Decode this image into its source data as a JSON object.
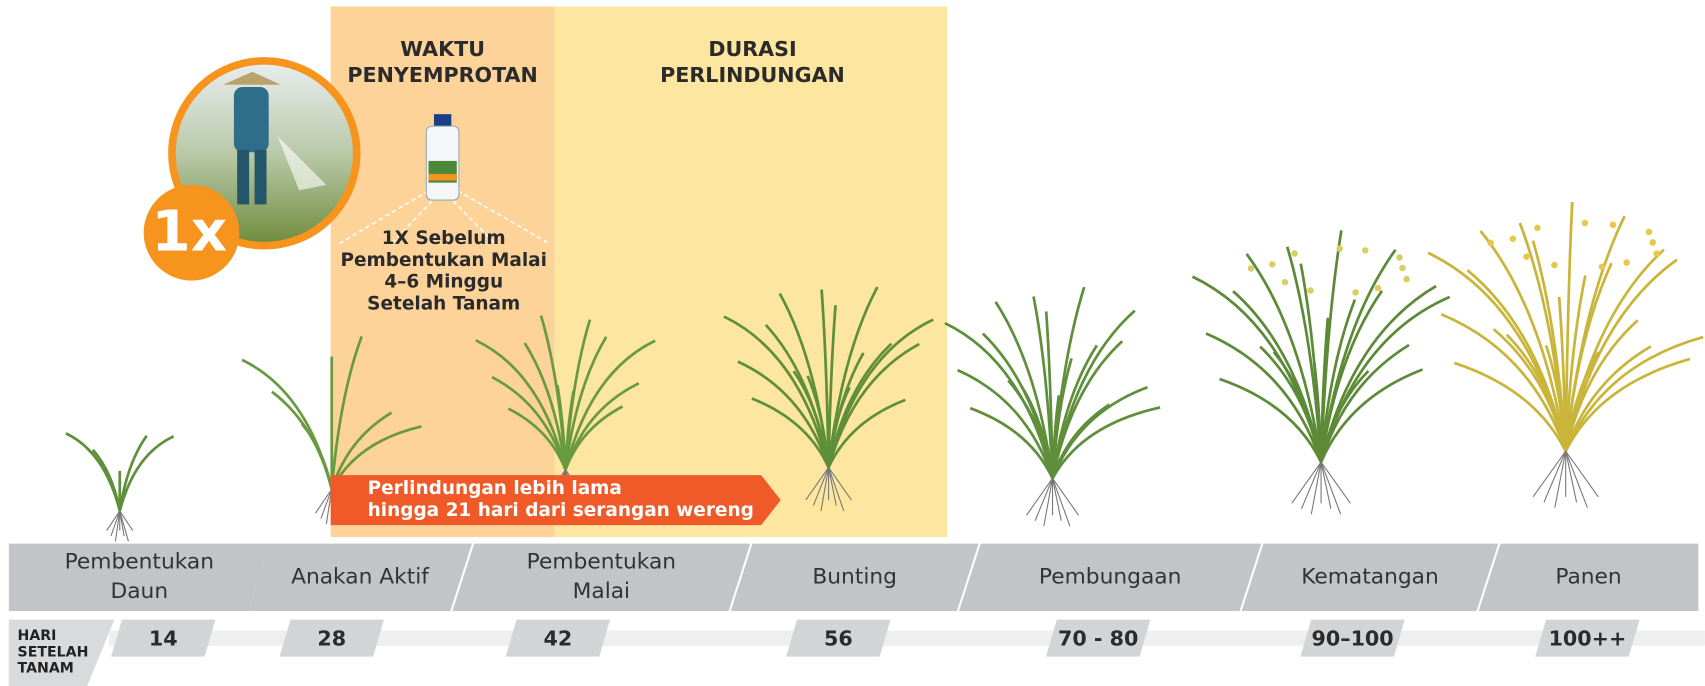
{
  "panels": {
    "spray_title": [
      "WAKTU",
      "PENYEMPROTAN"
    ],
    "protection_title": [
      "DURASI",
      "PERLINDUNGAN"
    ]
  },
  "badge": "1x",
  "product_note": [
    "1X  Sebelum",
    "Pembentukan Malai",
    "4–6 Minggu",
    "Setelah Tanam"
  ],
  "banner": [
    "Perlindungan lebih lama",
    "hingga 21 hari dari serangan wereng"
  ],
  "stages": [
    [
      "Pembentukan",
      "Daun"
    ],
    [
      "Anakan Aktif"
    ],
    [
      "Pembentukan",
      "Malai"
    ],
    [
      "Bunting"
    ],
    [
      "Pembungaan"
    ],
    [
      "Kematangan"
    ],
    [
      "Panen"
    ]
  ],
  "days_label": [
    "HARI",
    "SETELAH",
    "TANAM"
  ],
  "days": [
    "14",
    "28",
    "42",
    "56",
    "70 - 80",
    "90–100",
    "100++"
  ]
}
